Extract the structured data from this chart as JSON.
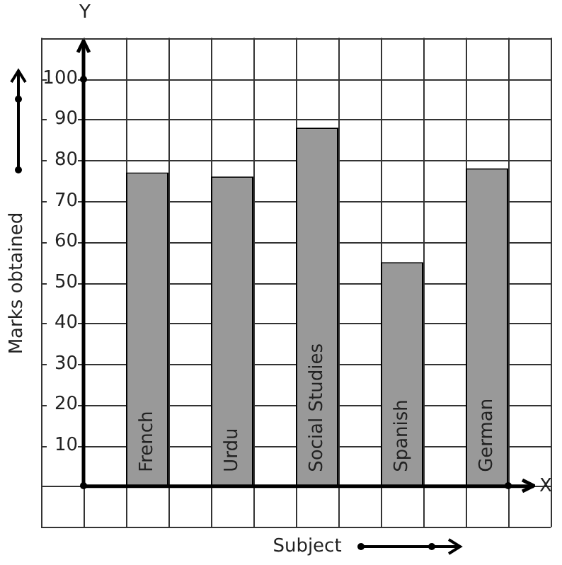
{
  "chart_data": {
    "type": "bar",
    "xlabel": "Subject",
    "ylabel": "Marks obtained",
    "categories": [
      "French",
      "Urdu",
      "Social Studies",
      "Spanish",
      "German"
    ],
    "values": [
      77,
      76,
      88,
      55,
      78
    ],
    "color": "#999999",
    "ylim": [
      -10,
      110
    ],
    "yticks": [
      10,
      20,
      30,
      40,
      50,
      60,
      70,
      80,
      90,
      100
    ],
    "grid": true,
    "annotations": [
      "Y",
      "X"
    ]
  }
}
